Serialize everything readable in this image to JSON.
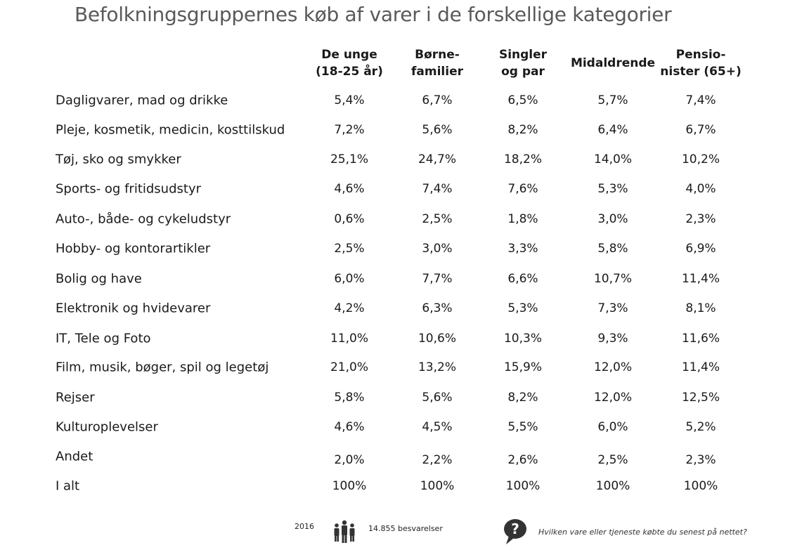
{
  "title": "Befolkningsgruppernes køb af varer i de forskellige kategorier",
  "chart_data": {
    "type": "table",
    "title": "Befolkningsgruppernes køb af varer i de forskellige kategorier",
    "columns": [
      {
        "line1": "De unge",
        "line2": "(18-25 år)"
      },
      {
        "line1": "Børne-",
        "line2": "familier"
      },
      {
        "line1": "Singler",
        "line2": "og par"
      },
      {
        "line1": "Midaldrende",
        "line2": ""
      },
      {
        "line1": "Pensio-",
        "line2": "nister (65+)"
      }
    ],
    "rows": [
      {
        "label": "Dagligvarer, mad og drikke",
        "values": [
          "5,4%",
          "6,7%",
          "6,5%",
          "5,7%",
          "7,4%"
        ]
      },
      {
        "label": "Pleje, kosmetik, medicin, kosttilskud",
        "values": [
          "7,2%",
          "5,6%",
          "8,2%",
          "6,4%",
          "6,7%"
        ]
      },
      {
        "label": "Tøj, sko og smykker",
        "values": [
          "25,1%",
          "24,7%",
          "18,2%",
          "14,0%",
          "10,2%"
        ]
      },
      {
        "label": "Sports- og fritidsudstyr",
        "values": [
          "4,6%",
          "7,4%",
          "7,6%",
          "5,3%",
          "4,0%"
        ]
      },
      {
        "label": "Auto-, både- og cykeludstyr",
        "values": [
          "0,6%",
          "2,5%",
          "1,8%",
          "3,0%",
          "2,3%"
        ]
      },
      {
        "label": "Hobby- og kontorartikler",
        "values": [
          "2,5%",
          "3,0%",
          "3,3%",
          "5,8%",
          "6,9%"
        ]
      },
      {
        "label": "Bolig og have",
        "values": [
          "6,0%",
          "7,7%",
          "6,6%",
          "10,7%",
          "11,4%"
        ]
      },
      {
        "label": "Elektronik og hvidevarer",
        "values": [
          "4,2%",
          "6,3%",
          "5,3%",
          "7,3%",
          "8,1%"
        ]
      },
      {
        "label": "IT, Tele og Foto",
        "values": [
          "11,0%",
          "10,6%",
          "10,3%",
          "9,3%",
          "11,6%"
        ]
      },
      {
        "label": "Film, musik, bøger, spil og legetøj",
        "values": [
          "21,0%",
          "13,2%",
          "15,9%",
          "12,0%",
          "11,4%"
        ]
      },
      {
        "label": "Rejser",
        "values": [
          "5,8%",
          "5,6%",
          "8,2%",
          "12,0%",
          "12,5%"
        ]
      },
      {
        "label": "Kulturoplevelser",
        "values": [
          "4,6%",
          "4,5%",
          "5,5%",
          "6,0%",
          "5,2%"
        ]
      },
      {
        "label": "Andet",
        "values": [
          "2,0%",
          "2,2%",
          "2,6%",
          "2,5%",
          "2,3%"
        ]
      },
      {
        "label": "I alt",
        "values": [
          "100%",
          "100%",
          "100%",
          "100%",
          "100%"
        ]
      }
    ]
  },
  "footer": {
    "year": "2016",
    "respondents": "14.855 besvarelser",
    "question": "Hvilken vare eller tjeneste købte du senest på nettet?"
  },
  "icons": {
    "people": "people-icon",
    "question": "question-bubble-icon"
  }
}
